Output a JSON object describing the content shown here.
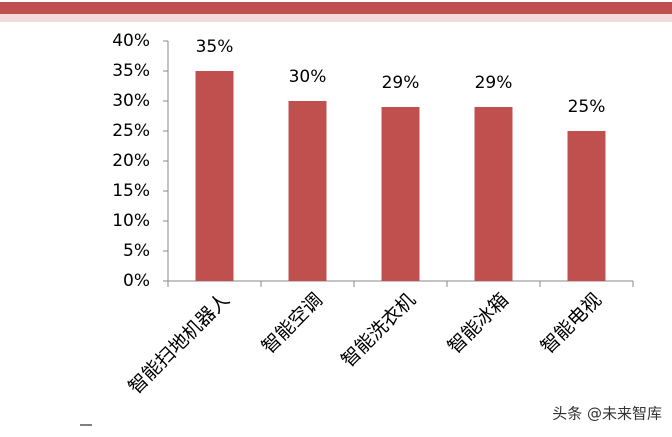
{
  "chart_data": {
    "type": "bar",
    "categories": [
      "智能扫地机器人",
      "智能空调",
      "智能洗衣机",
      "智能冰箱",
      "智能电视"
    ],
    "values": [
      35,
      30,
      29,
      29,
      25
    ],
    "value_labels": [
      "35%",
      "30%",
      "29%",
      "29%",
      "25%"
    ],
    "color": "#c0504d",
    "ylim": [
      0,
      40
    ],
    "yticks": [
      {
        "value": 0,
        "label": "0%"
      },
      {
        "value": 5,
        "label": "5%"
      },
      {
        "value": 10,
        "label": "10%"
      },
      {
        "value": 15,
        "label": "15%"
      },
      {
        "value": 20,
        "label": "20%"
      },
      {
        "value": 25,
        "label": "25%"
      },
      {
        "value": 30,
        "label": "30%"
      },
      {
        "value": 35,
        "label": "35%"
      },
      {
        "value": 40,
        "label": "40%"
      }
    ],
    "grid": false,
    "watermark": "头条 @未来智库"
  }
}
